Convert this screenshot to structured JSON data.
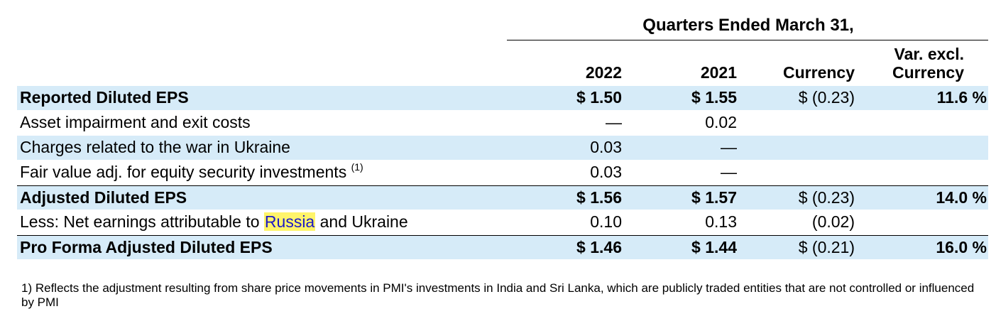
{
  "header": {
    "group_title": "Quarters Ended March 31,",
    "col_2022": "2022",
    "col_2021": "2021",
    "col_currency": "Currency",
    "col_var_line1": "Var. excl.",
    "col_var_line2": "Currency"
  },
  "rows": [
    {
      "label": "Reported Diluted EPS",
      "v2022": "$ 1.50",
      "v2021": "$ 1.55",
      "currency": "$ (0.23)",
      "var": "11.6 %"
    },
    {
      "label": "Asset impairment and exit costs",
      "v2022": "—",
      "v2021": "0.02",
      "currency": "",
      "var": ""
    },
    {
      "label": "Charges related to the war in Ukraine",
      "v2022": "0.03",
      "v2021": "—",
      "currency": "",
      "var": ""
    },
    {
      "label": "Fair value adj. for equity security investments",
      "sup": "(1)",
      "v2022": "0.03",
      "v2021": "—",
      "currency": "",
      "var": ""
    },
    {
      "label": "Adjusted Diluted EPS",
      "v2022": "$ 1.56",
      "v2021": "$ 1.57",
      "currency": "$ (0.23)",
      "var": "14.0 %"
    },
    {
      "label_pre": "Less: Net earnings attributable to ",
      "label_hl": "Russia",
      "label_post": " and Ukraine",
      "v2022": "0.10",
      "v2021": "0.13",
      "currency": "(0.02)",
      "var": ""
    },
    {
      "label": "Pro Forma Adjusted Diluted EPS",
      "v2022": "$ 1.46",
      "v2021": "$ 1.44",
      "currency": "$ (0.21)",
      "var": "16.0 %"
    }
  ],
  "footnote": "1) Reflects the adjustment resulting from share price movements in PMI's investments in India and Sri Lanka, which are publicly traded entities that are not controlled or influenced by PMI",
  "colors": {
    "row_shade": "#d6ebf8",
    "highlight": "#fff46a",
    "highlight_text": "#1a18c8"
  }
}
